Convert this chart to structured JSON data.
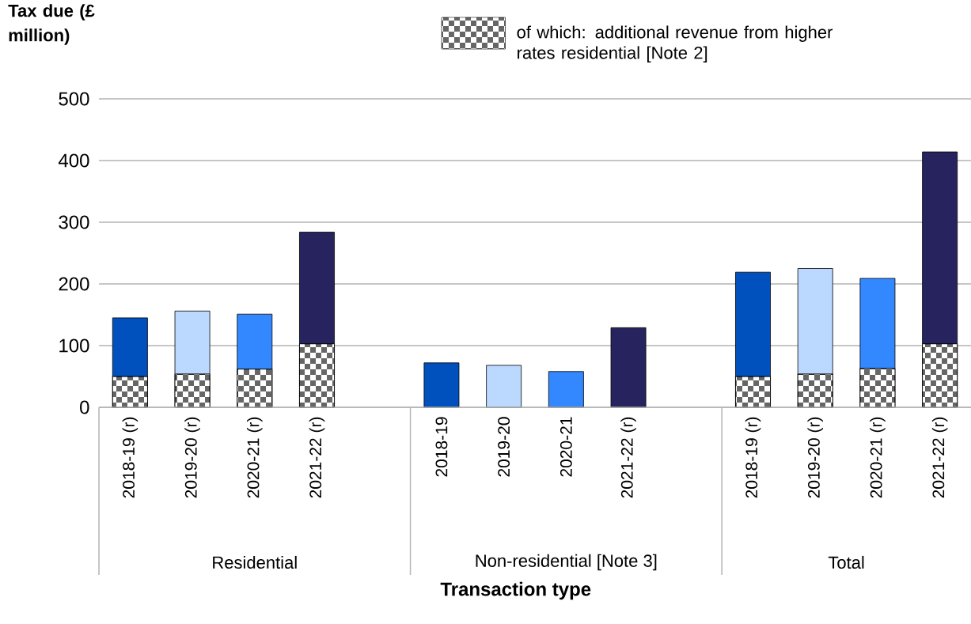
{
  "chart_data": {
    "type": "bar",
    "stacked": true,
    "categories": [
      "2018-19 (r)",
      "2019-20 (r)",
      "2020-21 (r)",
      "2021-22 (r)",
      null,
      "2018-19",
      "2019-20",
      "2020-21",
      "2021-22 (r)",
      null,
      "2018-19 (r)",
      "2019-20 (r)",
      "2020-21 (r)",
      "2021-22 (r)"
    ],
    "series": [
      {
        "name": "of which: additional revenue from higher rates residential [Note 2]",
        "color": "#666666",
        "values": [
          50,
          54,
          62,
          103,
          null,
          null,
          null,
          null,
          null,
          null,
          50,
          54,
          63,
          103
        ]
      },
      {
        "colors": [
          "#0050be",
          "#bbd8ff",
          "#3388ff",
          "#27235f",
          null,
          "#0050be",
          "#bbd8ff",
          "#3388ff",
          "#27235f",
          null,
          "#0050be",
          "#bbd8ff",
          "#3388ff",
          "#27235f"
        ],
        "values": [
          95,
          102,
          89,
          181,
          null,
          72,
          68,
          58,
          129,
          null,
          169,
          171,
          146,
          311
        ]
      }
    ],
    "ylim": [
      0,
      500
    ],
    "yticks": [
      0,
      100,
      200,
      300,
      400,
      500
    ],
    "grid": "y",
    "ylabel": "Tax due (£ million)",
    "xlabel": "Transaction type",
    "annotations": [
      "Residential",
      "Non-residential [Note 3]",
      "Total"
    ],
    "legend": "top"
  }
}
